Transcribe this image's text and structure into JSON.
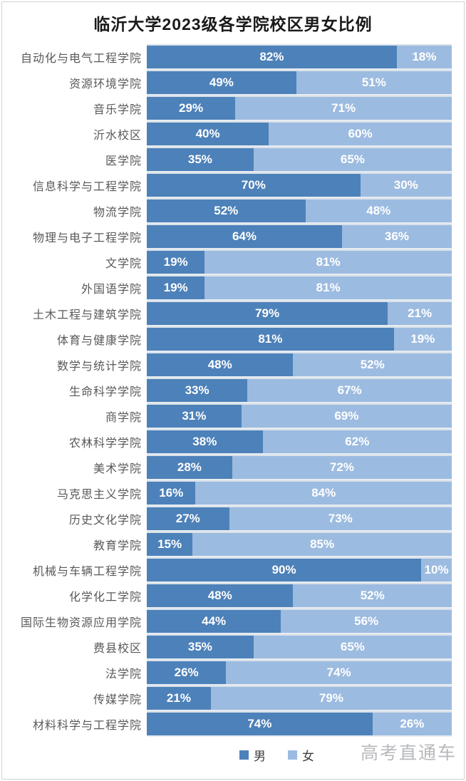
{
  "title": "临沂大学2023级各学院校区男女比例",
  "legend": {
    "male": "男",
    "female": "女"
  },
  "watermark": "高考直通车",
  "colors": {
    "male": "#4d81b9",
    "female": "#9cbbe0",
    "label_text": "#595959",
    "bar_value_text": "#ffffff"
  },
  "chart_data": {
    "type": "bar",
    "orientation": "horizontal",
    "stacked": true,
    "value_format": "percent",
    "xlim": [
      0,
      100
    ],
    "grid": false,
    "legend_position": "bottom",
    "title": "临沂大学2023级各学院校区男女比例",
    "categories": [
      "自动化与电气工程学院",
      "资源环境学院",
      "音乐学院",
      "沂水校区",
      "医学院",
      "信息科学与工程学院",
      "物流学院",
      "物理与电子工程学院",
      "文学院",
      "外国语学院",
      "土木工程与建筑学院",
      "体育与健康学院",
      "数学与统计学院",
      "生命科学学院",
      "商学院",
      "农林科学学院",
      "美术学院",
      "马克思主义学院",
      "历史文化学院",
      "教育学院",
      "机械与车辆工程学院",
      "化学化工学院",
      "国际生物资源应用学院",
      "费县校区",
      "法学院",
      "传媒学院",
      "材料科学与工程学院"
    ],
    "series": [
      {
        "name": "男",
        "values": [
          82,
          49,
          29,
          40,
          35,
          70,
          52,
          64,
          19,
          19,
          79,
          81,
          48,
          33,
          31,
          38,
          28,
          16,
          27,
          15,
          90,
          48,
          44,
          35,
          26,
          21,
          74
        ]
      },
      {
        "name": "女",
        "values": [
          18,
          51,
          71,
          60,
          65,
          30,
          48,
          36,
          81,
          81,
          21,
          19,
          52,
          67,
          69,
          62,
          72,
          84,
          73,
          85,
          10,
          52,
          56,
          65,
          74,
          79,
          26
        ]
      }
    ]
  }
}
